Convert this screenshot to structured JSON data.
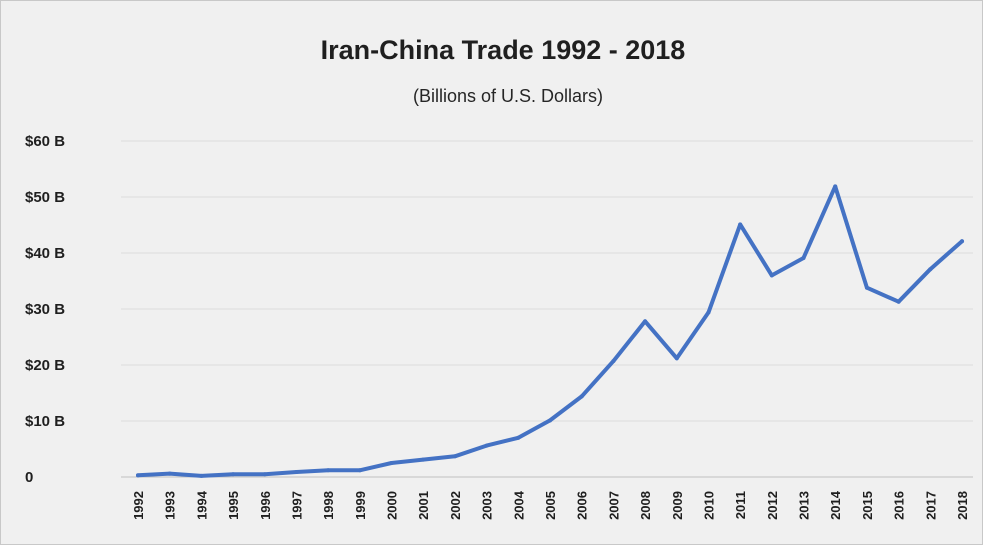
{
  "chart_data": {
    "type": "line",
    "title": "Iran-China Trade 1992 - 2018",
    "subtitle": "(Billions of U.S. Dollars)",
    "xlabel": "",
    "ylabel": "",
    "ylim": [
      0,
      60
    ],
    "yticks": [
      {
        "value": 0,
        "label": "0"
      },
      {
        "value": 10,
        "label": "$10 B"
      },
      {
        "value": 20,
        "label": "$20 B"
      },
      {
        "value": 30,
        "label": "$30 B"
      },
      {
        "value": 40,
        "label": "$40 B"
      },
      {
        "value": 50,
        "label": "$50 B"
      },
      {
        "value": 60,
        "label": "$60 B"
      }
    ],
    "categories": [
      "1992",
      "1993",
      "1994",
      "1995",
      "1996",
      "1997",
      "1998",
      "1999",
      "2000",
      "2001",
      "2002",
      "2003",
      "2004",
      "2005",
      "2006",
      "2007",
      "2008",
      "2009",
      "2010",
      "2011",
      "2012",
      "2013",
      "2014",
      "2015",
      "2016",
      "2017",
      "2018"
    ],
    "series": [
      {
        "color": "#4472c4",
        "values": [
          0.3,
          0.6,
          0.2,
          0.5,
          0.5,
          0.9,
          1.2,
          1.2,
          2.5,
          3.1,
          3.7,
          5.6,
          7.0,
          10.1,
          14.4,
          20.7,
          27.8,
          21.2,
          29.4,
          45.1,
          36.0,
          39.1,
          51.9,
          33.8,
          31.3,
          37.1,
          42.1
        ]
      }
    ],
    "grid": true,
    "legend": "none"
  }
}
